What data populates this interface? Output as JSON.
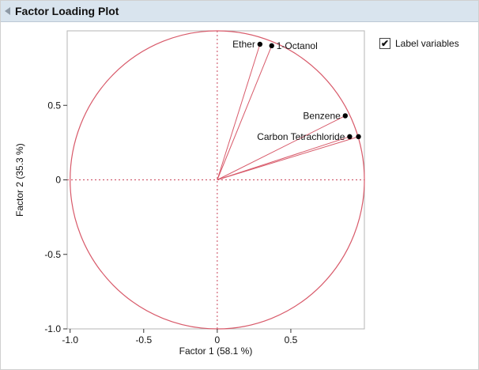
{
  "header": {
    "title": "Factor Loading Plot"
  },
  "controls": {
    "label_variables": {
      "label": "Label variables",
      "checked": true,
      "checkmark": "✔"
    }
  },
  "chart_data": {
    "type": "scatter",
    "title": "Factor Loading Plot",
    "xlabel": "Factor 1  (58.1 %)",
    "ylabel": "Factor 2  (35.3 %)",
    "xlim": [
      -1.02,
      1.0
    ],
    "ylim": [
      -1.0,
      1.0
    ],
    "x_ticks": [
      {
        "value": -1.0,
        "label": "-1.0"
      },
      {
        "value": -0.5,
        "label": "-0.5"
      },
      {
        "value": 0,
        "label": "0"
      },
      {
        "value": 0.5,
        "label": "0.5"
      }
    ],
    "y_ticks": [
      {
        "value": 0.5,
        "label": "0.5"
      },
      {
        "value": 0,
        "label": "0"
      },
      {
        "value": -0.5,
        "label": "-0.5"
      },
      {
        "value": -1.0,
        "label": "-1.0"
      }
    ],
    "unit_circle": true,
    "rays_from_origin": true,
    "reference_lines": {
      "vertical_x": 0,
      "horizontal_y": 0
    },
    "points": [
      {
        "label": "Ether",
        "x": 0.29,
        "y": 0.91,
        "label_side": "left"
      },
      {
        "label": "1-Octanol",
        "x": 0.37,
        "y": 0.9,
        "label_side": "right"
      },
      {
        "label": "Benzene",
        "x": 0.87,
        "y": 0.43,
        "label_side": "left"
      },
      {
        "label": "Carbon Tetrachloride",
        "x": 0.9,
        "y": 0.29,
        "label_side": "left"
      },
      {
        "label": "",
        "x": 0.96,
        "y": 0.29,
        "label_side": "none"
      }
    ],
    "colors": {
      "circle": "#d85a6a",
      "ray": "#d85a6a",
      "reference_dash": "#c9455a",
      "point": "#000000",
      "frame": "#b5b5b5",
      "tick": "#333333",
      "text": "#111111"
    },
    "grid": "off",
    "legend": "off"
  }
}
